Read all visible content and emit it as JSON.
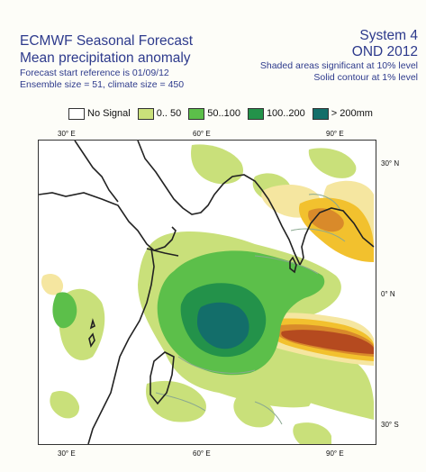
{
  "header": {
    "title_line1": "ECMWF Seasonal Forecast",
    "title_line2": "Mean precipitation anomaly",
    "start_reference": "Forecast start reference is 01/09/12",
    "ensemble": "Ensemble size = 51, climate size = 450",
    "system": "System 4",
    "season": "OND 2012",
    "note_shaded": "Shaded areas significant at 10% level",
    "note_contour": "Solid contour at 1% level"
  },
  "legend": [
    {
      "label": "No Signal",
      "color": "#ffffff"
    },
    {
      "label": "0.. 50",
      "color": "#c9e07a"
    },
    {
      "label": "50..100",
      "color": "#5cbf4a"
    },
    {
      "label": "100..200",
      "color": "#23924a"
    },
    {
      "label": "> 200mm",
      "color": "#136e6a"
    }
  ],
  "axes": {
    "top_ticks": [
      "30° E",
      "60° E",
      "90° E"
    ],
    "bottom_ticks": [
      "30° E",
      "60° E",
      "90° E"
    ],
    "right_ticks": [
      "30° N",
      "0° N",
      "30° S"
    ]
  },
  "colors": {
    "dry_light": "#f5e6a0",
    "dry_mid": "#f2c12e",
    "dry_strong": "#d98a2a",
    "dry_max": "#b54a1f",
    "contour": "#8aa890",
    "coast": "#222222"
  }
}
